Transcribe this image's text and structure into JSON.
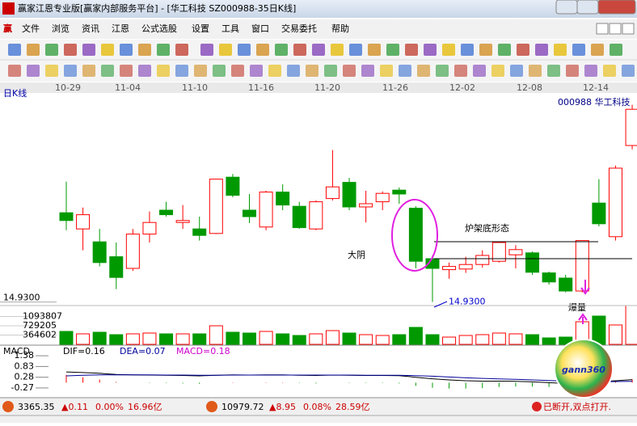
{
  "window": {
    "title": "赢家江恩专业版[赢家内部服务平台] - [华工科技  SZ000988-35日K线]"
  },
  "menu": [
    "文件",
    "浏览",
    "资讯",
    "江恩",
    "公式选股",
    "设置",
    "工具",
    "窗口",
    "交易委托",
    "帮助"
  ],
  "chart_data": [
    {
      "type": "candlestick",
      "title": "日K线",
      "stock": "000988  华工科技",
      "x_labels": [
        "10-29",
        "11-04",
        "11-10",
        "11-16",
        "11-20",
        "11-26",
        "12-02",
        "12-08",
        "12-14"
      ],
      "open": [
        16.31,
        16.06,
        15.86,
        15.63,
        15.45,
        15.98,
        16.35,
        16.16,
        16.06,
        15.99,
        16.86,
        16.35,
        16.09,
        16.63,
        16.41,
        16.06,
        16.53,
        16.78,
        16.4,
        16.48,
        16.66,
        16.38,
        15.6,
        15.43,
        15.44,
        15.51,
        15.56,
        15.66,
        15.69,
        15.38,
        15.3,
        15.1,
        16.46,
        15.94,
        17.35
      ],
      "high": [
        16.79,
        16.39,
        16.06,
        15.85,
        16.06,
        16.33,
        16.48,
        16.43,
        16.25,
        16.83,
        16.91,
        16.6,
        16.65,
        16.75,
        16.48,
        16.5,
        17.28,
        16.85,
        16.65,
        16.64,
        16.7,
        16.41,
        15.65,
        15.54,
        15.63,
        15.73,
        15.85,
        15.81,
        15.71,
        15.4,
        15.35,
        15.88,
        16.83,
        17.04,
        17.98
      ],
      "low": [
        16.04,
        15.73,
        15.48,
        15.13,
        15.41,
        15.85,
        16.25,
        16.06,
        15.88,
        15.98,
        16.55,
        16.15,
        16.04,
        16.35,
        16.06,
        16.04,
        16.5,
        16.35,
        16.16,
        16.35,
        16.45,
        15.45,
        14.93,
        15.29,
        15.38,
        15.46,
        15.54,
        15.45,
        15.35,
        15.2,
        15.08,
        15.08,
        16.1,
        15.88,
        17.29
      ],
      "close": [
        16.19,
        16.28,
        15.54,
        15.31,
        15.98,
        16.16,
        16.28,
        16.19,
        15.96,
        16.83,
        16.58,
        16.25,
        16.63,
        16.43,
        16.08,
        16.48,
        16.71,
        16.4,
        16.45,
        16.61,
        16.6,
        15.56,
        15.45,
        15.48,
        15.51,
        15.65,
        15.85,
        15.74,
        15.39,
        15.24,
        15.1,
        15.88,
        16.14,
        17.0,
        17.91
      ],
      "up_color": "#ff0000",
      "down_color": "#009900",
      "ylim": [
        14.9,
        18.1
      ],
      "yticks": [
        {
          "value": 14.93,
          "label": "14.9300"
        }
      ],
      "low_label": {
        "value": 14.93,
        "label": "14.9300"
      },
      "annotations": [
        "大阴",
        "炉架底形态",
        "爆量"
      ]
    },
    {
      "type": "bar",
      "values": [
        507200,
        412100,
        475500,
        380400,
        412100,
        443800,
        412100,
        412100,
        412100,
        729100,
        475500,
        443800,
        507200,
        412100,
        348700,
        412100,
        538900,
        443800,
        380400,
        348700,
        380400,
        665700,
        380400,
        285300,
        348700,
        380400,
        443800,
        412100,
        380400,
        253600,
        285300,
        887600,
        1109500,
        760800,
        1521600
      ],
      "ylim": [
        0,
        1521600
      ],
      "yticks": [
        364602,
        729205,
        1093807
      ]
    },
    {
      "type": "macd",
      "title": "MACD",
      "legend": [
        "DIF=0.16",
        "DEA=0.07",
        "MACD=0.18"
      ],
      "dif": [
        0.55,
        0.52,
        0.48,
        0.42,
        0.4,
        0.39,
        0.38,
        0.37,
        0.35,
        0.38,
        0.4,
        0.39,
        0.4,
        0.4,
        0.38,
        0.37,
        0.39,
        0.38,
        0.37,
        0.37,
        0.36,
        0.28,
        0.2,
        0.14,
        0.1,
        0.08,
        0.08,
        0.07,
        0.04,
        0.0,
        -0.04,
        -0.02,
        0.04,
        0.1,
        0.16
      ],
      "dea": [
        0.35,
        0.38,
        0.4,
        0.4,
        0.4,
        0.4,
        0.39,
        0.39,
        0.38,
        0.38,
        0.39,
        0.39,
        0.39,
        0.39,
        0.39,
        0.39,
        0.39,
        0.39,
        0.38,
        0.38,
        0.38,
        0.36,
        0.33,
        0.29,
        0.25,
        0.22,
        0.19,
        0.17,
        0.14,
        0.11,
        0.08,
        0.06,
        0.05,
        0.06,
        0.07
      ],
      "macd": [
        0.4,
        0.28,
        0.16,
        0.04,
        0,
        -0.02,
        -0.02,
        -0.04,
        -0.06,
        0,
        0.02,
        0,
        0.02,
        0.02,
        -0.02,
        -0.04,
        0,
        -0.02,
        -0.02,
        -0.02,
        -0.04,
        -0.16,
        -0.26,
        -0.3,
        -0.3,
        -0.28,
        -0.22,
        -0.2,
        -0.2,
        -0.22,
        -0.24,
        -0.16,
        -0.02,
        0.08,
        0.18
      ],
      "colors": [
        "#000000",
        "#000099",
        "#cc00cc"
      ],
      "ylim": [
        -0.77,
        1.55
      ],
      "yticks": [
        1.38,
        0.83,
        0.28,
        -0.27
      ]
    }
  ],
  "status": {
    "sh": [
      "3365.35",
      "▲0.11",
      "0.00%",
      "16.96亿"
    ],
    "sz": [
      "10979.72",
      "▲8.95",
      "0.08%",
      "28.59亿"
    ],
    "connection": "已断开,双点打开."
  },
  "logo": "gann360"
}
